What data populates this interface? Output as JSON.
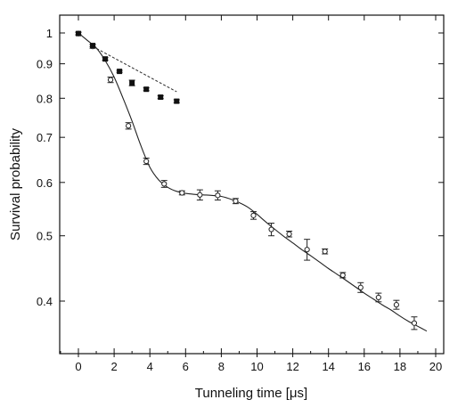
{
  "chart_data": {
    "type": "scatter",
    "title": "",
    "xlabel": "Tunneling time [μs]",
    "ylabel": "Survival probability",
    "xlim": [
      -1,
      20
    ],
    "ylim": [
      0.355,
      1.03
    ],
    "yscale": "log",
    "x_ticks": [
      0,
      2,
      4,
      6,
      8,
      10,
      12,
      14,
      16,
      18,
      20
    ],
    "x_tick_labels": [
      "0",
      "2",
      "4",
      "6",
      "8",
      "10",
      "12",
      "14",
      "16",
      "18",
      "20"
    ],
    "y_ticks": [
      1.0,
      0.9,
      0.8,
      0.7,
      0.6,
      0.5,
      0.4
    ],
    "y_tick_labels": [
      "1",
      "0.9",
      "0.8",
      "0.7",
      "0.6",
      "0.5",
      "0.4"
    ],
    "grid": false,
    "legend": "none",
    "series": [
      {
        "marker": "open",
        "points": [
          {
            "x": 0.0,
            "y": 0.998,
            "err": 0.005
          },
          {
            "x": 0.8,
            "y": 0.955,
            "err": 0.006
          },
          {
            "x": 1.8,
            "y": 0.852,
            "err": 0.008
          },
          {
            "x": 2.8,
            "y": 0.728,
            "err": 0.008
          },
          {
            "x": 3.8,
            "y": 0.645,
            "err": 0.007
          },
          {
            "x": 4.8,
            "y": 0.597,
            "err": 0.007
          },
          {
            "x": 5.8,
            "y": 0.579,
            "err": 0.004
          },
          {
            "x": 6.8,
            "y": 0.575,
            "err": 0.01
          },
          {
            "x": 7.8,
            "y": 0.574,
            "err": 0.009
          },
          {
            "x": 8.8,
            "y": 0.563,
            "err": 0.005
          },
          {
            "x": 9.8,
            "y": 0.536,
            "err": 0.007
          },
          {
            "x": 10.8,
            "y": 0.511,
            "err": 0.011
          },
          {
            "x": 11.8,
            "y": 0.503,
            "err": 0.005
          },
          {
            "x": 12.8,
            "y": 0.477,
            "err": 0.017
          },
          {
            "x": 13.8,
            "y": 0.474,
            "err": 0.004
          },
          {
            "x": 14.8,
            "y": 0.437,
            "err": 0.004
          },
          {
            "x": 15.8,
            "y": 0.419,
            "err": 0.007
          },
          {
            "x": 16.8,
            "y": 0.405,
            "err": 0.006
          },
          {
            "x": 17.8,
            "y": 0.395,
            "err": 0.006
          },
          {
            "x": 18.8,
            "y": 0.371,
            "err": 0.008
          }
        ]
      },
      {
        "marker": "filled",
        "points": [
          {
            "x": 0.0,
            "y": 0.998,
            "err": 0.004
          },
          {
            "x": 0.8,
            "y": 0.958,
            "err": 0.004
          },
          {
            "x": 1.5,
            "y": 0.915,
            "err": 0.004
          },
          {
            "x": 2.3,
            "y": 0.877,
            "err": 0.003
          },
          {
            "x": 3.0,
            "y": 0.843,
            "err": 0.008
          },
          {
            "x": 3.8,
            "y": 0.825,
            "err": 0.004
          },
          {
            "x": 4.6,
            "y": 0.803,
            "err": 0.004
          },
          {
            "x": 5.5,
            "y": 0.792,
            "err": 0.004
          }
        ]
      }
    ],
    "fit_curve": [
      [
        0,
        1.0
      ],
      [
        0.5,
        0.975
      ],
      [
        1.0,
        0.95
      ],
      [
        1.5,
        0.91
      ],
      [
        2.0,
        0.86
      ],
      [
        2.5,
        0.8
      ],
      [
        3.0,
        0.74
      ],
      [
        3.5,
        0.68
      ],
      [
        4.0,
        0.632
      ],
      [
        4.5,
        0.605
      ],
      [
        5.0,
        0.59
      ],
      [
        5.5,
        0.582
      ],
      [
        6.0,
        0.578
      ],
      [
        6.5,
        0.576
      ],
      [
        7.0,
        0.575
      ],
      [
        7.5,
        0.574
      ],
      [
        8.0,
        0.572
      ],
      [
        8.5,
        0.567
      ],
      [
        9.0,
        0.56
      ],
      [
        9.5,
        0.551
      ],
      [
        10.0,
        0.538
      ],
      [
        10.5,
        0.524
      ],
      [
        11.0,
        0.511
      ],
      [
        11.5,
        0.499
      ],
      [
        12.0,
        0.488
      ],
      [
        12.5,
        0.477
      ],
      [
        13.0,
        0.467
      ],
      [
        13.5,
        0.457
      ],
      [
        14.0,
        0.447
      ],
      [
        14.5,
        0.438
      ],
      [
        15.0,
        0.429
      ],
      [
        15.5,
        0.42
      ],
      [
        16.0,
        0.411
      ],
      [
        16.5,
        0.403
      ],
      [
        17.0,
        0.395
      ],
      [
        17.5,
        0.388
      ],
      [
        18.0,
        0.38
      ],
      [
        18.5,
        0.373
      ],
      [
        19.0,
        0.367
      ],
      [
        19.5,
        0.361
      ]
    ],
    "reference_line": [
      [
        0.8,
        0.955
      ],
      [
        5.5,
        0.818
      ]
    ]
  }
}
